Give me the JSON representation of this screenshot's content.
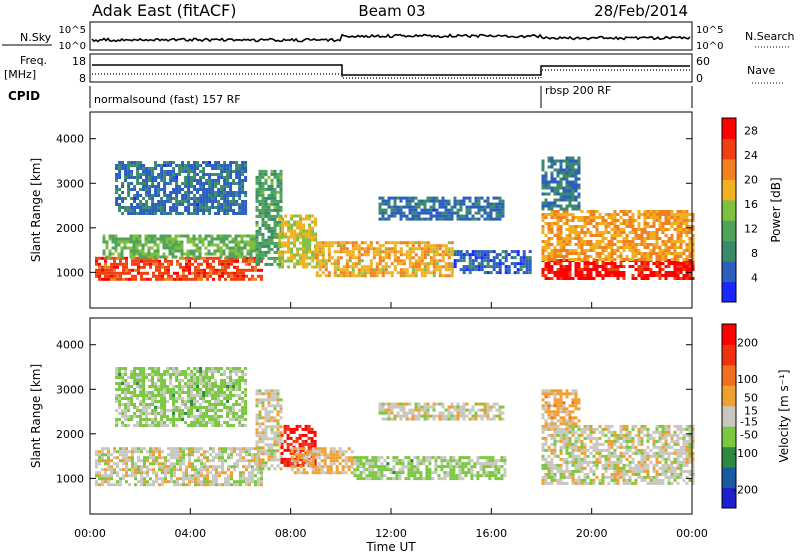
{
  "header": {
    "station": "Adak East (fitACF)",
    "beam": "Beam 03",
    "date": "28/Feb/2014"
  },
  "housekeeping": {
    "nsky_label": "N.Sky",
    "nsky_ticks": [
      "10^5",
      "10^0"
    ],
    "nsearch_label": "N.Search",
    "nsearch_ticks": [
      "10^5",
      "10^0"
    ],
    "freq_label": "Freq.",
    "freq_unit": "[MHz]",
    "freq_ticks": [
      "18",
      "8"
    ],
    "nave_label": "Nave",
    "nave_ticks": [
      "60",
      "0"
    ],
    "cpid_label": "CPID",
    "modes": [
      {
        "name": "normalsound (fast) 157 RF",
        "start_hour": 0
      },
      {
        "name": "rbsp 200 RF",
        "start_hour": 18
      }
    ]
  },
  "chart_data": [
    {
      "type": "heatmap",
      "id": "power",
      "title": "",
      "xlabel": "Time UT",
      "ylabel": "Slant Range [km]",
      "x_ticks": [
        "00:00",
        "04:00",
        "08:00",
        "12:00",
        "16:00",
        "20:00",
        "00:00"
      ],
      "xlim_hours": [
        0,
        24
      ],
      "y_ticks": [
        1000,
        2000,
        3000,
        4000
      ],
      "ylim": [
        200,
        4600
      ],
      "colorbar": {
        "label": "Power [dB]",
        "ticks": [
          4,
          8,
          12,
          16,
          20,
          24,
          28
        ],
        "range": [
          0,
          30
        ],
        "colors": [
          "#1a28ff",
          "#2a5fc0",
          "#3b8a6a",
          "#4fa45a",
          "#80c040",
          "#f0b020",
          "#f08020",
          "#f04010",
          "#ff0000"
        ]
      },
      "regions": [
        {
          "t0": 0.2,
          "t1": 6.8,
          "r0": 850,
          "r1": 1350,
          "v": 25
        },
        {
          "t0": 0.5,
          "t1": 6.5,
          "r0": 1350,
          "r1": 1850,
          "v": 13
        },
        {
          "t0": 1.0,
          "t1": 6.2,
          "r0": 2300,
          "r1": 3500,
          "v": 6
        },
        {
          "t0": 6.6,
          "t1": 7.6,
          "r0": 1200,
          "r1": 3300,
          "v": 11
        },
        {
          "t0": 7.5,
          "t1": 9.0,
          "r0": 1100,
          "r1": 2300,
          "v": 17
        },
        {
          "t0": 9.0,
          "t1": 14.5,
          "r0": 900,
          "r1": 1700,
          "v": 19
        },
        {
          "t0": 11.5,
          "t1": 16.5,
          "r0": 2200,
          "r1": 2700,
          "v": 6
        },
        {
          "t0": 14.5,
          "t1": 17.5,
          "r0": 1000,
          "r1": 1500,
          "v": 5
        },
        {
          "t0": 18.0,
          "t1": 24.0,
          "r0": 850,
          "r1": 1300,
          "v": 28
        },
        {
          "t0": 18.0,
          "t1": 24.0,
          "r0": 1300,
          "r1": 2400,
          "v": 20
        },
        {
          "t0": 18.0,
          "t1": 19.5,
          "r0": 2400,
          "r1": 3600,
          "v": 7
        }
      ]
    },
    {
      "type": "heatmap",
      "id": "velocity",
      "title": "",
      "xlabel": "Time UT",
      "ylabel": "Slant Range [km]",
      "x_ticks": [
        "00:00",
        "04:00",
        "08:00",
        "12:00",
        "16:00",
        "20:00",
        "00:00"
      ],
      "xlim_hours": [
        0,
        24
      ],
      "y_ticks": [
        1000,
        2000,
        3000,
        4000
      ],
      "ylim": [
        200,
        4600
      ],
      "colorbar": {
        "label": "Velocity [m s⁻¹]",
        "ticks": [
          200,
          100,
          50,
          15,
          -15,
          -50,
          -100,
          -200
        ],
        "range": [
          -250,
          250
        ],
        "colors": [
          "#1f1fd0",
          "#1a5aa0",
          "#2e8a40",
          "#7ac840",
          "#c8c8c0",
          "#f0a030",
          "#f07020",
          "#f03010",
          "#ff0000"
        ]
      },
      "regions": [
        {
          "t0": 0.2,
          "t1": 6.8,
          "r0": 850,
          "r1": 1700,
          "v": 0
        },
        {
          "t0": 1.0,
          "t1": 6.2,
          "r0": 2200,
          "r1": 3500,
          "v": -40
        },
        {
          "t0": 6.6,
          "t1": 7.6,
          "r0": 1200,
          "r1": 3000,
          "v": 5
        },
        {
          "t0": 7.6,
          "t1": 9.0,
          "r0": 1300,
          "r1": 2200,
          "v": 200
        },
        {
          "t0": 8.0,
          "t1": 10.5,
          "r0": 1100,
          "r1": 1700,
          "v": 40
        },
        {
          "t0": 10.5,
          "t1": 16.5,
          "r0": 1000,
          "r1": 1500,
          "v": -40
        },
        {
          "t0": 11.5,
          "t1": 16.5,
          "r0": 2300,
          "r1": 2700,
          "v": 0
        },
        {
          "t0": 18.0,
          "t1": 24.0,
          "r0": 900,
          "r1": 2200,
          "v": 0
        },
        {
          "t0": 18.0,
          "t1": 19.5,
          "r0": 2200,
          "r1": 3000,
          "v": 45
        }
      ]
    }
  ]
}
